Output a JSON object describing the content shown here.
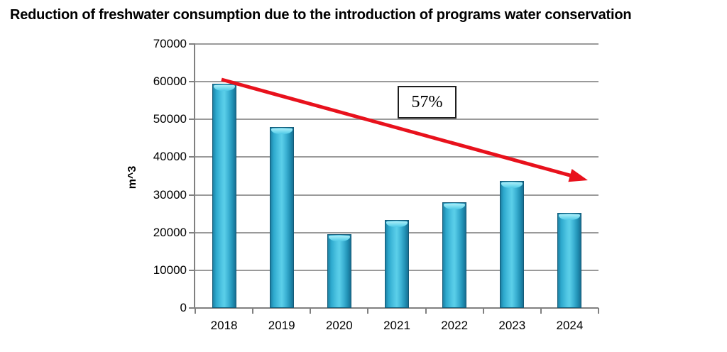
{
  "chart_data": {
    "type": "bar",
    "title": "Reduction of freshwater consumption due to the introduction of programs water conservation",
    "xlabel": "",
    "ylabel": "m^3",
    "categories": [
      "2018",
      "2019",
      "2020",
      "2021",
      "2022",
      "2023",
      "2024"
    ],
    "values": [
      59500,
      48000,
      19600,
      23400,
      28000,
      33700,
      25300
    ],
    "ylim": [
      0,
      70000
    ],
    "ytick_step": 10000,
    "grid": "horizontal",
    "legend": "none",
    "annotation": {
      "label": "57%",
      "meaning": "overall reduction shown by trend arrow"
    },
    "colors": {
      "bar_fill": "#3ab7d9",
      "bar_highlight": "#5bcfe9",
      "bar_edge": "#135a77",
      "bar_cap": "#aeebf7",
      "gridline": "#9a9a9a",
      "axis": "#808080",
      "trend_arrow": "#e8111c",
      "annotation_border": "#1f1f1f",
      "text": "#000000"
    }
  }
}
